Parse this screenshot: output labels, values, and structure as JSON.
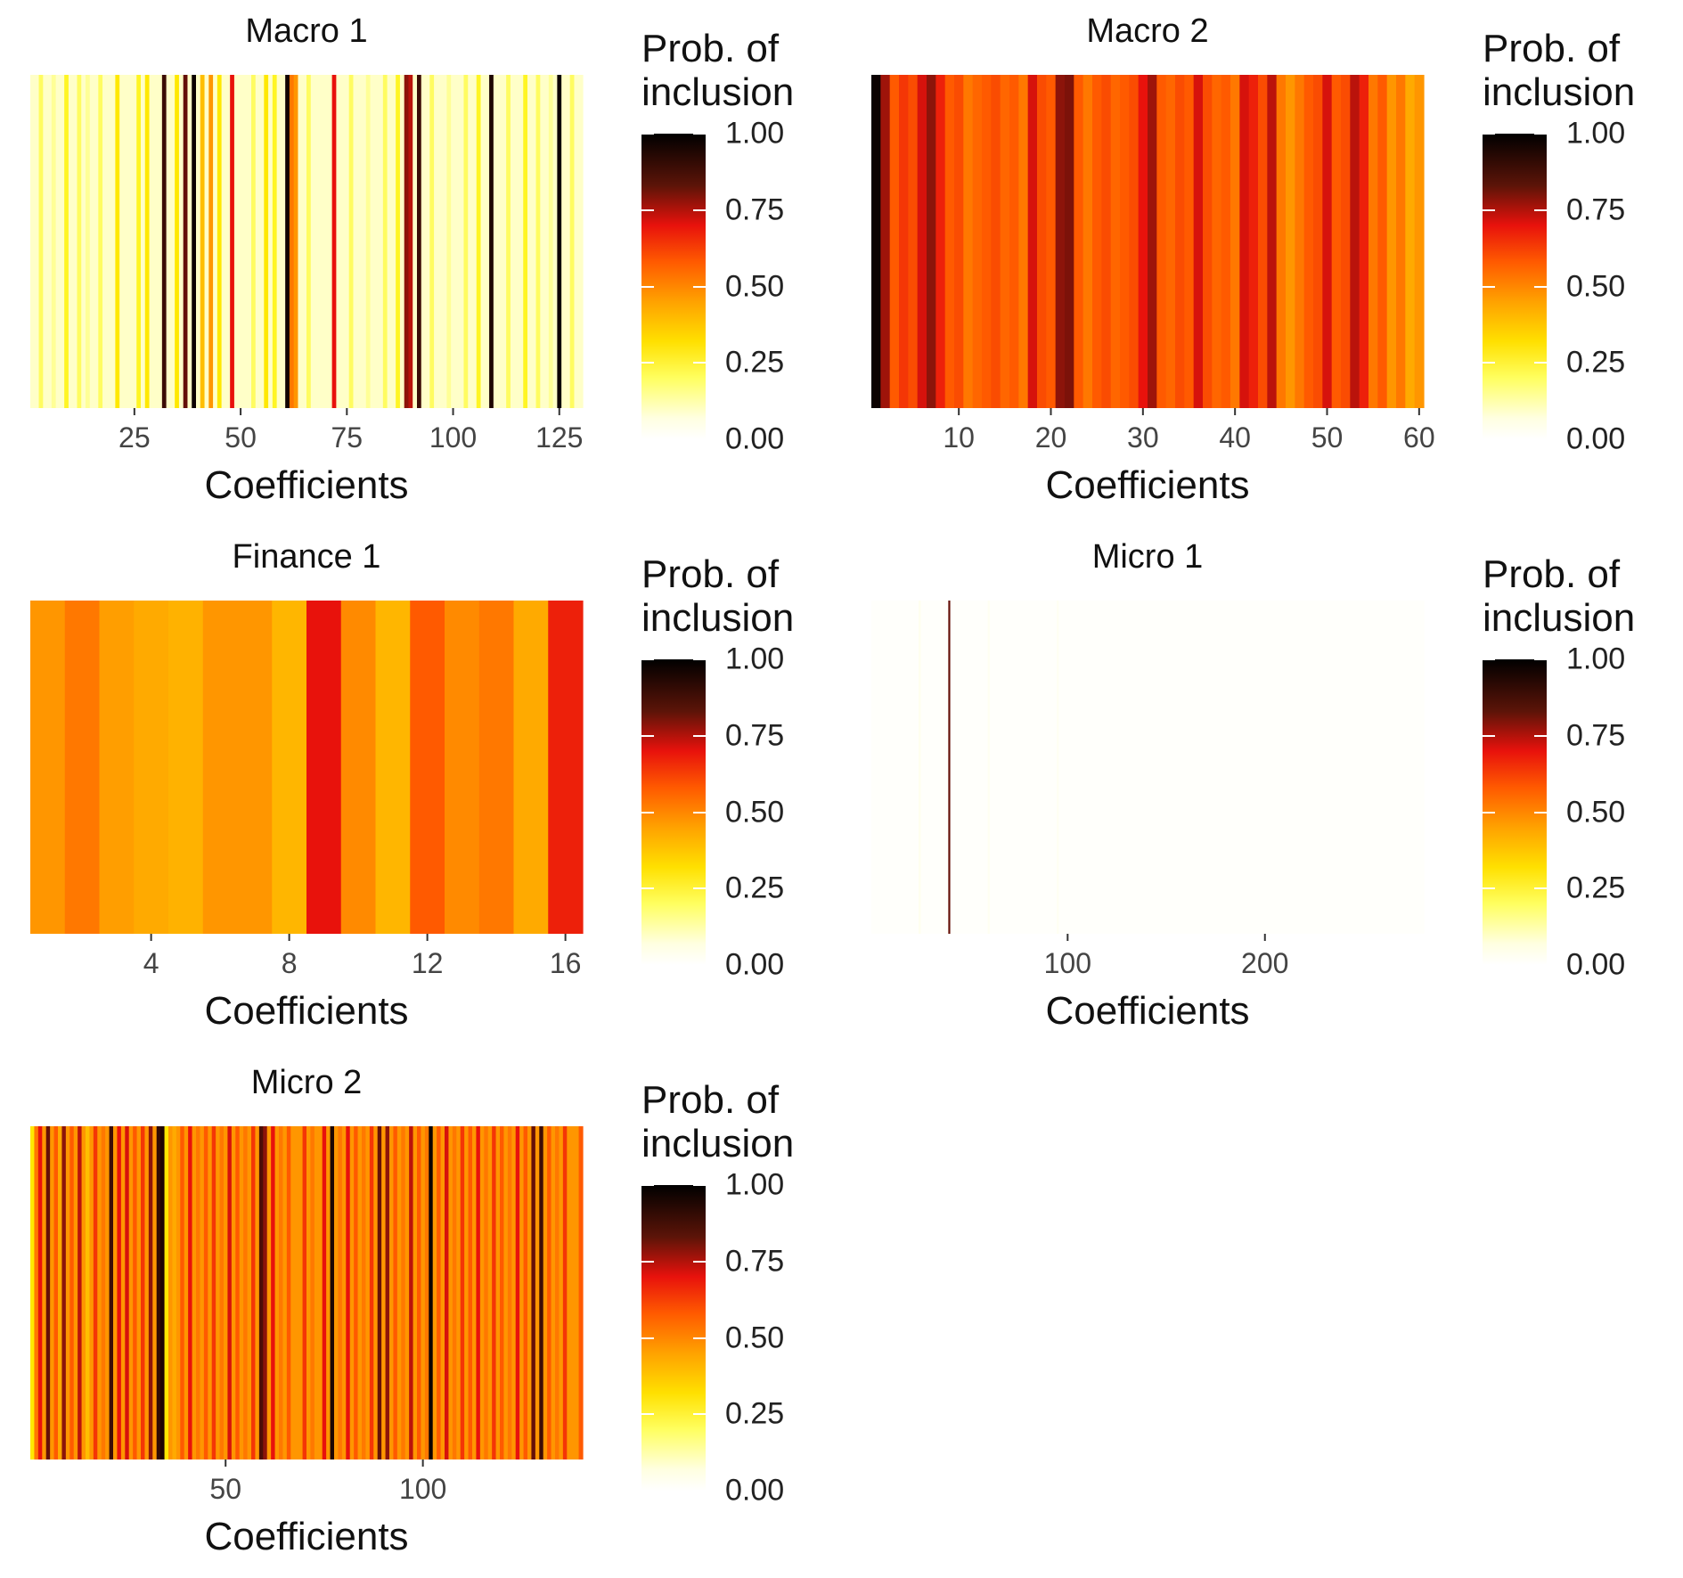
{
  "legend": {
    "title_line1": "Prob. of",
    "title_line2": "inclusion",
    "breaks": [
      "1.00",
      "0.75",
      "0.50",
      "0.25",
      "0.00"
    ]
  },
  "chart_data": [
    {
      "id": "macro1",
      "type": "heatmap",
      "title": "Macro 1",
      "xlabel": "Coefficients",
      "ylabel": "",
      "n": 130,
      "xlim": [
        0.5,
        130.5
      ],
      "xticks": [
        25,
        50,
        75,
        100,
        125
      ],
      "base_value": 0.1,
      "values_by_index": {
        "3": 0.2,
        "6": 0.15,
        "9": 0.25,
        "12": 0.2,
        "14": 0.15,
        "17": 0.2,
        "21": 0.3,
        "26": 0.25,
        "28": 0.3,
        "32": 0.9,
        "35": 0.3,
        "37": 0.85,
        "39": 0.98,
        "41": 0.4,
        "43": 0.5,
        "45": 0.3,
        "48": 0.7,
        "53": 0.2,
        "56": 0.3,
        "58": 0.25,
        "61": 0.97,
        "62": 0.55,
        "63": 0.5,
        "66": 0.2,
        "72": 0.7,
        "76": 0.2,
        "80": 0.15,
        "84": 0.2,
        "87": 0.25,
        "89": 0.8,
        "90": 0.75,
        "92": 0.9,
        "95": 0.2,
        "99": 0.15,
        "103": 0.2,
        "106": 0.25,
        "109": 0.95,
        "113": 0.2,
        "117": 0.25,
        "120": 0.2,
        "123": 0.15,
        "125": 0.98,
        "128": 0.2
      }
    },
    {
      "id": "macro2",
      "type": "heatmap",
      "title": "Macro 2",
      "xlabel": "Coefficients",
      "ylabel": "",
      "n": 60,
      "xlim": [
        0.5,
        60.5
      ],
      "xticks": [
        10,
        20,
        30,
        40,
        50,
        60
      ],
      "values": [
        0.98,
        0.78,
        0.6,
        0.65,
        0.62,
        0.72,
        0.8,
        0.68,
        0.6,
        0.62,
        0.55,
        0.58,
        0.6,
        0.62,
        0.58,
        0.6,
        0.55,
        0.72,
        0.62,
        0.6,
        0.8,
        0.82,
        0.6,
        0.55,
        0.6,
        0.62,
        0.58,
        0.6,
        0.62,
        0.7,
        0.78,
        0.6,
        0.58,
        0.62,
        0.6,
        0.72,
        0.62,
        0.58,
        0.6,
        0.55,
        0.72,
        0.68,
        0.62,
        0.75,
        0.55,
        0.5,
        0.55,
        0.6,
        0.62,
        0.72,
        0.6,
        0.62,
        0.75,
        0.68,
        0.55,
        0.6,
        0.5,
        0.55,
        0.45,
        0.5
      ]
    },
    {
      "id": "finance1",
      "type": "heatmap",
      "title": "Finance 1",
      "xlabel": "Coefficients",
      "ylabel": "",
      "n": 16,
      "xlim": [
        0.5,
        16.5
      ],
      "xticks": [
        4,
        8,
        12,
        16
      ],
      "values": [
        0.5,
        0.55,
        0.48,
        0.45,
        0.43,
        0.5,
        0.5,
        0.42,
        0.7,
        0.52,
        0.42,
        0.6,
        0.52,
        0.55,
        0.45,
        0.68
      ]
    },
    {
      "id": "micro1",
      "type": "heatmap",
      "title": "Micro 1",
      "xlabel": "Coefficients",
      "ylabel": "",
      "n": 280,
      "xlim": [
        0.5,
        280.5
      ],
      "xticks": [
        100,
        200
      ],
      "base_value": 0.01,
      "values_by_index": {
        "40": 0.85,
        "25": 0.04,
        "60": 0.03,
        "95": 0.03
      }
    },
    {
      "id": "micro2",
      "type": "heatmap",
      "title": "Micro 2",
      "xlabel": "Coefficients",
      "ylabel": "",
      "n": 140,
      "xlim": [
        0.5,
        140.5
      ],
      "xticks": [
        50,
        100
      ],
      "base_value": 0.5,
      "values_by_index": {
        "1": 0.3,
        "2": 0.55,
        "3": 0.7,
        "5": 0.85,
        "7": 0.6,
        "8": 0.45,
        "9": 0.8,
        "11": 0.6,
        "13": 0.75,
        "15": 0.4,
        "17": 0.65,
        "19": 0.55,
        "21": 0.9,
        "23": 0.7,
        "25": 0.72,
        "27": 0.6,
        "29": 0.65,
        "31": 0.8,
        "33": 0.92,
        "34": 0.95,
        "35": 0.3,
        "37": 0.45,
        "39": 0.6,
        "41": 0.7,
        "43": 0.55,
        "45": 0.6,
        "47": 0.65,
        "49": 0.55,
        "51": 0.72,
        "53": 0.6,
        "55": 0.55,
        "57": 0.65,
        "59": 0.88,
        "60": 0.8,
        "62": 0.7,
        "64": 0.55,
        "66": 0.6,
        "68": 0.5,
        "70": 0.65,
        "72": 0.55,
        "75": 0.7,
        "77": 0.95,
        "79": 0.55,
        "81": 0.7,
        "83": 0.6,
        "85": 0.55,
        "87": 0.65,
        "89": 0.85,
        "91": 0.8,
        "93": 0.6,
        "95": 0.55,
        "97": 0.75,
        "99": 0.6,
        "101": 0.55,
        "102": 0.98,
        "104": 0.6,
        "106": 0.72,
        "108": 0.55,
        "110": 0.65,
        "112": 0.6,
        "114": 0.7,
        "116": 0.55,
        "118": 0.65,
        "120": 0.6,
        "122": 0.55,
        "124": 0.7,
        "126": 0.6,
        "128": 0.85,
        "130": 0.9,
        "132": 0.6,
        "134": 0.55,
        "136": 0.65,
        "138": 0.5,
        "140": 0.6
      }
    }
  ]
}
